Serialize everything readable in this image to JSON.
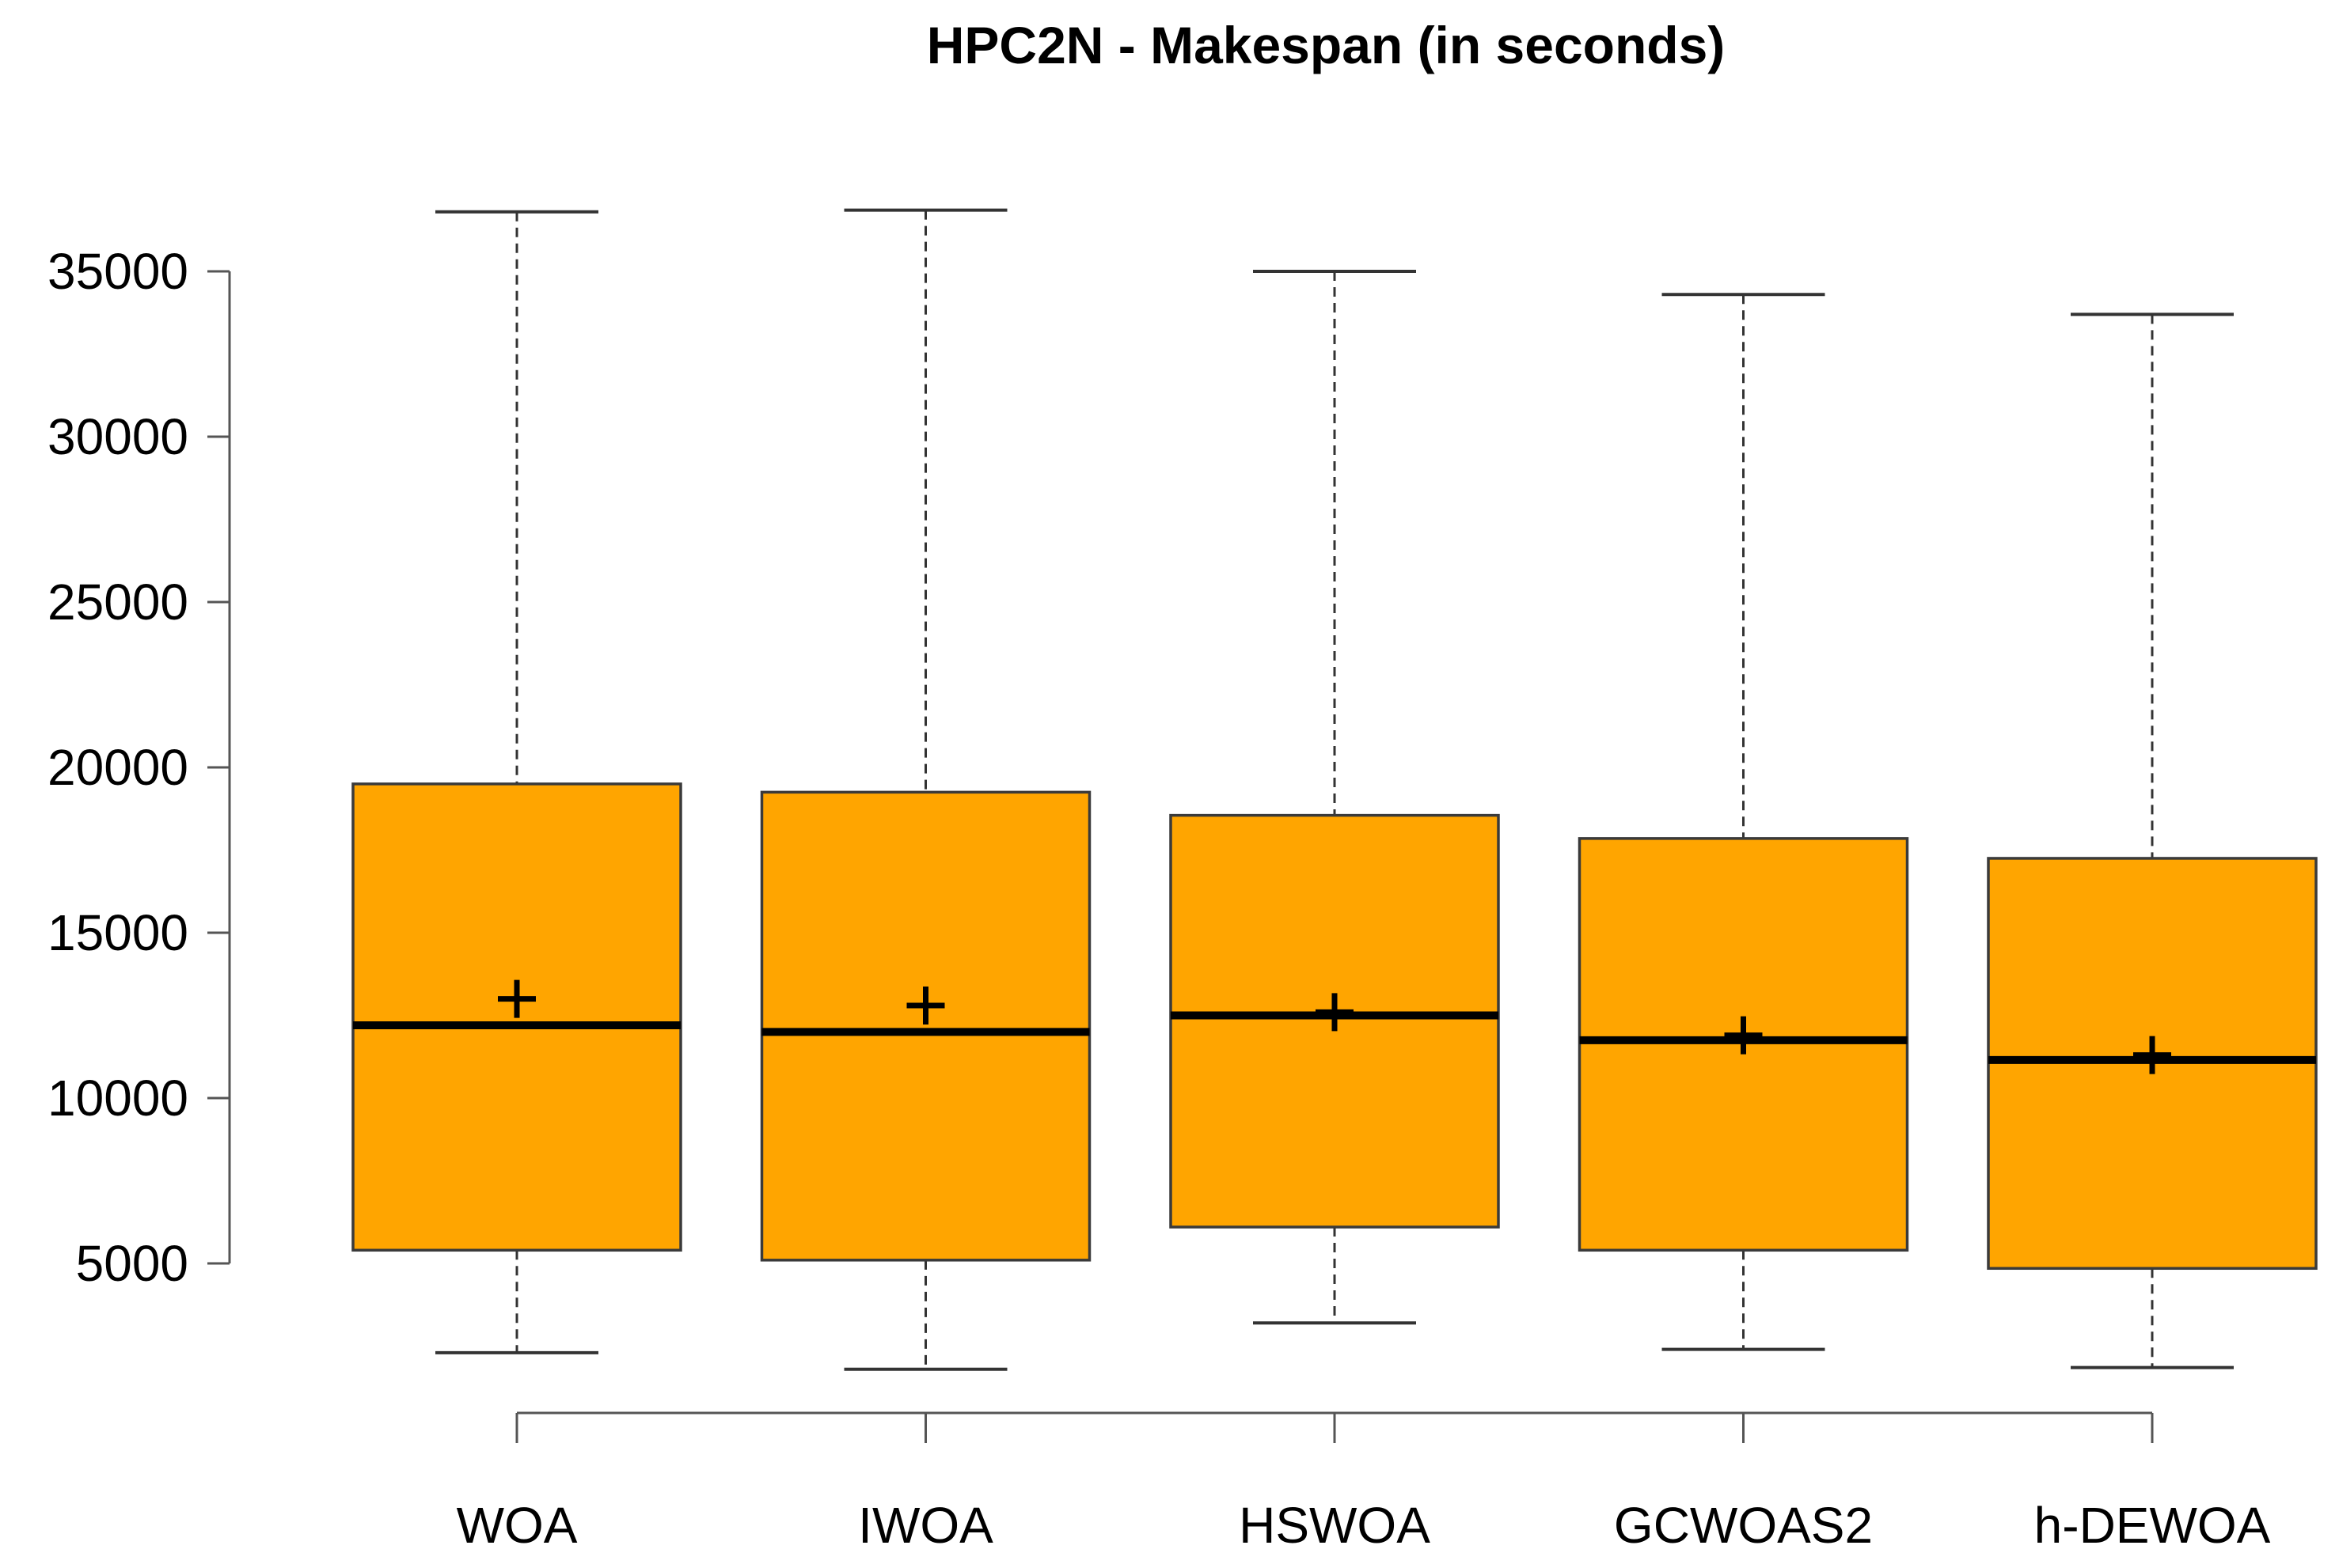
{
  "chart_data": {
    "type": "boxplot",
    "title": "HPC2N - Makespan (in seconds)",
    "xlabel": "",
    "ylabel": "",
    "ylim": [
      2000,
      37000
    ],
    "yticks": [
      5000,
      10000,
      15000,
      20000,
      25000,
      30000,
      35000
    ],
    "ytick_labels": [
      "5000",
      "10000",
      "15000",
      "20000",
      "25000",
      "30000",
      "35000"
    ],
    "categories": [
      "WOA",
      "IWOA",
      "HSWOA",
      "GCWOAS2",
      "h-DEWOA"
    ],
    "series": [
      {
        "category": "WOA",
        "min": 2300,
        "q1": 5400,
        "median": 12200,
        "mean": 13000,
        "q3": 19500,
        "max": 36800
      },
      {
        "category": "IWOA",
        "min": 1800,
        "q1": 5100,
        "median": 12000,
        "mean": 12800,
        "q3": 19250,
        "max": 36850
      },
      {
        "category": "HSWOA",
        "min": 3200,
        "q1": 6100,
        "median": 12500,
        "mean": 12600,
        "q3": 18550,
        "max": 35000
      },
      {
        "category": "GCWOAS2",
        "min": 2400,
        "q1": 5400,
        "median": 11750,
        "mean": 11900,
        "q3": 17850,
        "max": 34300
      },
      {
        "category": "h-DEWOA",
        "min": 1850,
        "q1": 4850,
        "median": 11150,
        "mean": 11300,
        "q3": 17250,
        "max": 33700
      }
    ],
    "box_color": "#FFA500",
    "legend": "none",
    "grid": false
  }
}
